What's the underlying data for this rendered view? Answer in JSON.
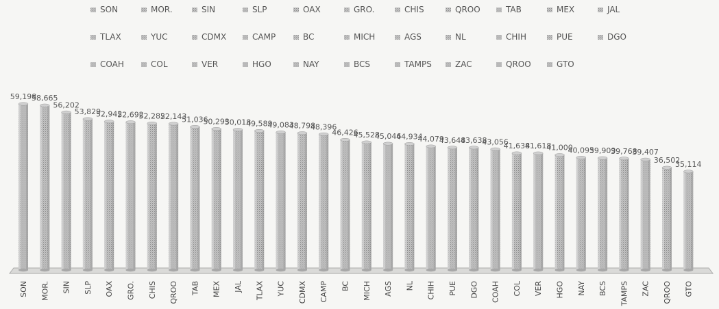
{
  "chart_data": {
    "type": "bar",
    "title": "",
    "xlabel": "",
    "ylabel": "",
    "legend_position": "top",
    "grid": false,
    "bar_color": "#b4b4b4",
    "categories": [
      "SON",
      "MOR.",
      "SIN",
      "SLP",
      "OAX",
      "GRO.",
      "CHIS",
      "QROO",
      "TAB",
      "MEX",
      "JAL",
      "TLAX",
      "YUC",
      "CDMX",
      "CAMP",
      "BC",
      "MICH",
      "AGS",
      "NL",
      "CHIH",
      "PUE",
      "DGO",
      "COAH",
      "COL",
      "VER",
      "HGO",
      "NAY",
      "BCS",
      "TAMPS",
      "ZAC",
      "QROO",
      "GTO"
    ],
    "values": [
      59198,
      58665,
      56202,
      53829,
      52942,
      52692,
      52282,
      52143,
      51036,
      50293,
      50018,
      49589,
      49083,
      48798,
      48396,
      46426,
      45528,
      45046,
      44934,
      44079,
      43648,
      43638,
      43056,
      41638,
      41618,
      41000,
      40095,
      39909,
      39768,
      39407,
      36502,
      35114
    ],
    "data_labels": [
      "59,198",
      "58,665",
      "56,202",
      "53,829",
      "52,942",
      "52,692",
      "52,282",
      "52,143",
      "51,036",
      "50,293",
      "50,018",
      "49,589",
      "49,083",
      "48,798",
      "48,396",
      "46,426",
      "45,528",
      "45,046",
      "44,934",
      "44,079",
      "43,648",
      "43,638",
      "43,056",
      "41,638",
      "41,618",
      "41,000",
      "40,095",
      "39,909",
      "39,768",
      "39,407",
      "36,502",
      "35,114"
    ],
    "legend": [
      "SON",
      "MOR.",
      "SIN",
      "SLP",
      "OAX",
      "GRO.",
      "CHIS",
      "QROO",
      "TAB",
      "MEX",
      "JAL",
      "TLAX",
      "YUC",
      "CDMX",
      "CAMP",
      "BC",
      "MICH",
      "AGS",
      "NL",
      "CHIH",
      "PUE",
      "DGO",
      "COAH",
      "COL",
      "VER",
      "HGO",
      "NAY",
      "BCS",
      "TAMPS",
      "ZAC",
      "QROO",
      "GTO"
    ]
  }
}
